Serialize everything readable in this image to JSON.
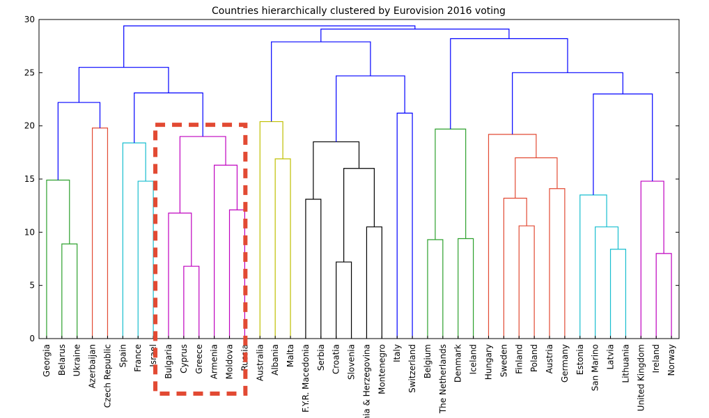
{
  "chart_data": {
    "type": "dendrogram",
    "title": "Countries hierarchically clustered by Eurovision 2016 voting",
    "ylim": [
      0,
      30
    ],
    "yticks": [
      0,
      5,
      10,
      15,
      20,
      25,
      30
    ],
    "grid": false,
    "leaves": [
      "Georgia",
      "Belarus",
      "Ukraine",
      "Azerbaijan",
      "Czech Republic",
      "Spain",
      "France",
      "Israel",
      "Bulgaria",
      "Cyprus",
      "Greece",
      "Armenia",
      "Moldova",
      "Russia",
      "Australia",
      "Albania",
      "Malta",
      "F.Y.R. Macedonia",
      "Serbia",
      "Croatia",
      "Slovenia",
      "Bosnia & Herzegovina",
      "Montenegro",
      "Italy",
      "Switzerland",
      "Belgium",
      "The Netherlands",
      "Denmark",
      "Iceland",
      "Hungary",
      "Sweden",
      "Finland",
      "Poland",
      "Austria",
      "Germany",
      "Estonia",
      "San Marino",
      "Latvia",
      "Lithuania",
      "United Kingdom",
      "Ireland",
      "Norway"
    ],
    "merges": [
      {
        "left": "Belarus",
        "right": "Ukraine",
        "height": 8.9,
        "color": "#2ca02c"
      },
      {
        "left": "Georgia",
        "right": "m0",
        "height": 14.9,
        "color": "#2ca02c"
      },
      {
        "left": "Azerbaijan",
        "right": "Czech Republic",
        "height": 19.8,
        "color": "#e24a33"
      },
      {
        "left": "m1",
        "right": "m2",
        "height": 22.2,
        "color": "#0000ff"
      },
      {
        "left": "France",
        "right": "Israel",
        "height": 14.8,
        "color": "#17becf"
      },
      {
        "left": "Spain",
        "right": "m4",
        "height": 18.4,
        "color": "#17becf"
      },
      {
        "left": "Cyprus",
        "right": "Greece",
        "height": 6.8,
        "color": "#bf00bf"
      },
      {
        "left": "Bulgaria",
        "right": "m6",
        "height": 11.8,
        "color": "#bf00bf"
      },
      {
        "left": "Moldova",
        "right": "Russia",
        "height": 12.1,
        "color": "#bf00bf"
      },
      {
        "left": "Armenia",
        "right": "m8",
        "height": 16.3,
        "color": "#bf00bf"
      },
      {
        "left": "m7",
        "right": "m9",
        "height": 19.0,
        "color": "#bf00bf"
      },
      {
        "left": "m5",
        "right": "m10",
        "height": 23.1,
        "color": "#0000ff"
      },
      {
        "left": "m3",
        "right": "m11",
        "height": 25.5,
        "color": "#0000ff"
      },
      {
        "left": "Albania",
        "right": "Malta",
        "height": 16.9,
        "color": "#bfbf00"
      },
      {
        "left": "Australia",
        "right": "m13",
        "height": 20.4,
        "color": "#bfbf00"
      },
      {
        "left": "F.Y.R. Macedonia",
        "right": "Serbia",
        "height": 13.1,
        "color": "#000000"
      },
      {
        "left": "Croatia",
        "right": "Slovenia",
        "height": 7.2,
        "color": "#000000"
      },
      {
        "left": "Bosnia & Herzegovina",
        "right": "Montenegro",
        "height": 10.5,
        "color": "#000000"
      },
      {
        "left": "m16",
        "right": "m17",
        "height": 16.0,
        "color": "#000000"
      },
      {
        "left": "m15",
        "right": "m18",
        "height": 18.5,
        "color": "#000000"
      },
      {
        "left": "Italy",
        "right": "Switzerland",
        "height": 21.2,
        "color": "#0000ff"
      },
      {
        "left": "m19",
        "right": "m20",
        "height": 24.7,
        "color": "#0000ff"
      },
      {
        "left": "m14",
        "right": "m21",
        "height": 27.9,
        "color": "#0000ff"
      },
      {
        "left": "Belgium",
        "right": "The Netherlands",
        "height": 9.3,
        "color": "#2ca02c"
      },
      {
        "left": "Denmark",
        "right": "Iceland",
        "height": 9.4,
        "color": "#2ca02c"
      },
      {
        "left": "m23",
        "right": "m24",
        "height": 19.7,
        "color": "#2ca02c"
      },
      {
        "left": "Finland",
        "right": "Poland",
        "height": 10.6,
        "color": "#e24a33"
      },
      {
        "left": "Sweden",
        "right": "m26",
        "height": 13.2,
        "color": "#e24a33"
      },
      {
        "left": "Austria",
        "right": "Germany",
        "height": 14.1,
        "color": "#e24a33"
      },
      {
        "left": "m27",
        "right": "m28",
        "height": 17.0,
        "color": "#e24a33"
      },
      {
        "left": "Hungary",
        "right": "m29",
        "height": 19.2,
        "color": "#e24a33"
      },
      {
        "left": "Latvia",
        "right": "Lithuania",
        "height": 8.4,
        "color": "#17becf"
      },
      {
        "left": "San Marino",
        "right": "m31",
        "height": 10.5,
        "color": "#17becf"
      },
      {
        "left": "Estonia",
        "right": "m32",
        "height": 13.5,
        "color": "#17becf"
      },
      {
        "left": "Ireland",
        "right": "Norway",
        "height": 8.0,
        "color": "#bf00bf"
      },
      {
        "left": "United Kingdom",
        "right": "m34",
        "height": 14.8,
        "color": "#bf00bf"
      },
      {
        "left": "m33",
        "right": "m35",
        "height": 23.0,
        "color": "#0000ff"
      },
      {
        "left": "m30",
        "right": "m36",
        "height": 25.0,
        "color": "#0000ff"
      },
      {
        "left": "m25",
        "right": "m37",
        "height": 28.2,
        "color": "#0000ff"
      },
      {
        "left": "m22",
        "right": "m38",
        "height": 29.1,
        "color": "#0000ff"
      },
      {
        "left": "m12",
        "right": "m39",
        "height": 29.4,
        "color": "#0000ff"
      }
    ],
    "annotation": {
      "shape": "dashed-rectangle",
      "color": "#e24a33",
      "highlighted_leaves": [
        "Bulgaria",
        "Cyprus",
        "Greece",
        "Armenia",
        "Moldova",
        "Russia"
      ]
    }
  }
}
